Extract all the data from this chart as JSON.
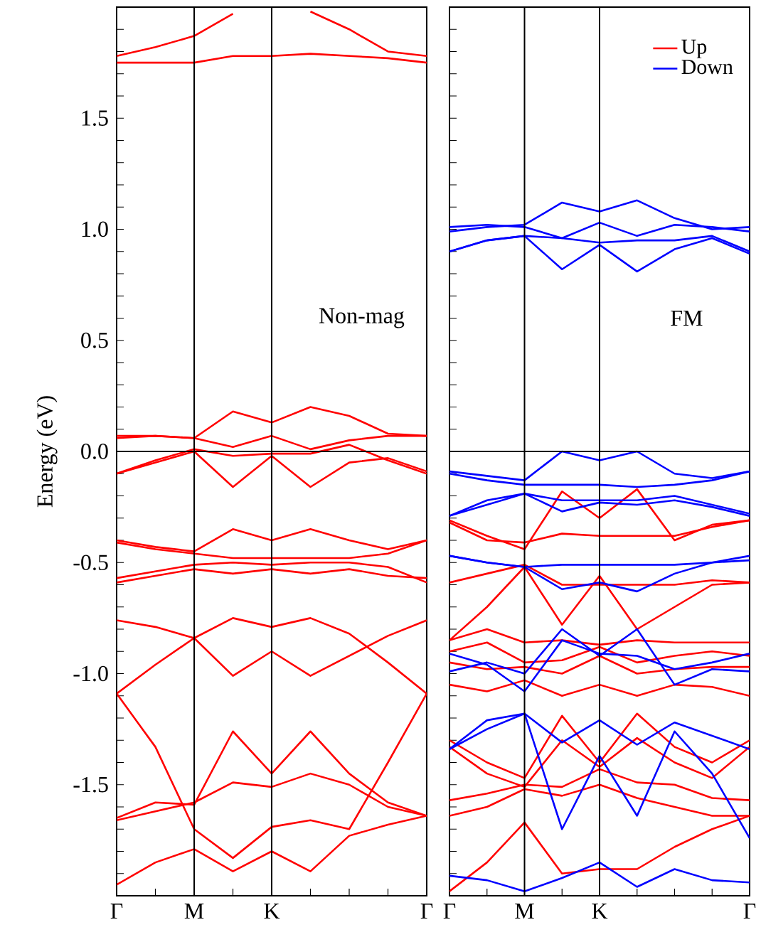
{
  "chart_data": [
    {
      "type": "line",
      "ylabel": "Energy (eV)",
      "annotations": [
        "Non-mag"
      ],
      "legend": false,
      "categories": [
        "Γ",
        null,
        "M",
        null,
        "K",
        null,
        null,
        null,
        "Γ"
      ],
      "ylim": [
        -2,
        2
      ],
      "yticks": [
        {
          "value": -1.9,
          "label": null
        },
        {
          "value": -1.8,
          "label": null
        },
        {
          "value": -1.7,
          "label": null
        },
        {
          "value": -1.6,
          "label": null
        },
        {
          "value": -1.5,
          "label": "-1.5"
        },
        {
          "value": -1.4,
          "label": null
        },
        {
          "value": -1.3,
          "label": null
        },
        {
          "value": -1.2,
          "label": null
        },
        {
          "value": -1.1,
          "label": null
        },
        {
          "value": -1.0,
          "label": "-1.0"
        },
        {
          "value": -0.9,
          "label": null
        },
        {
          "value": -0.8,
          "label": null
        },
        {
          "value": -0.7,
          "label": null
        },
        {
          "value": -0.6,
          "label": null
        },
        {
          "value": -0.5,
          "label": "-0.5"
        },
        {
          "value": -0.4,
          "label": null
        },
        {
          "value": -0.3,
          "label": null
        },
        {
          "value": -0.2,
          "label": null
        },
        {
          "value": -0.1,
          "label": null
        },
        {
          "value": 0,
          "label": "0.0"
        },
        {
          "value": 0.1,
          "label": null
        },
        {
          "value": 0.2,
          "label": null
        },
        {
          "value": 0.3,
          "label": null
        },
        {
          "value": 0.4,
          "label": null
        },
        {
          "value": 0.5,
          "label": "0.5"
        },
        {
          "value": 0.6,
          "label": null
        },
        {
          "value": 0.7,
          "label": null
        },
        {
          "value": 0.8,
          "label": null
        },
        {
          "value": 0.9,
          "label": null
        },
        {
          "value": 1.0,
          "label": "1.0"
        },
        {
          "value": 1.1,
          "label": null
        },
        {
          "value": 1.2,
          "label": null
        },
        {
          "value": 1.3,
          "label": null
        },
        {
          "value": 1.4,
          "label": null
        },
        {
          "value": 1.5,
          "label": "1.5"
        },
        {
          "value": 1.6,
          "label": null
        },
        {
          "value": 1.7,
          "label": null
        },
        {
          "value": 1.8,
          "label": null
        },
        {
          "value": 1.9,
          "label": null
        }
      ],
      "ref_lines": [
        {
          "axis": "x",
          "value": "M",
          "color": "#000000"
        },
        {
          "axis": "x",
          "value": "K",
          "color": "#000000"
        },
        {
          "axis": "y",
          "value": 0,
          "color": "#000000"
        }
      ],
      "series": [
        {
          "color": "#ff0000",
          "values": [
            1.75,
            1.75,
            1.75,
            1.78,
            1.78,
            1.79,
            1.78,
            1.77,
            1.75
          ]
        },
        {
          "color": "#ff0000",
          "values": [
            1.78,
            1.82,
            1.87,
            1.97,
            null,
            1.98,
            1.9,
            1.8,
            1.78
          ]
        },
        {
          "color": "#ff0000",
          "values": [
            0.07,
            0.07,
            0.06,
            0.18,
            0.13,
            0.2,
            0.16,
            0.08,
            0.07
          ]
        },
        {
          "color": "#ff0000",
          "values": [
            0.06,
            0.07,
            0.06,
            0.02,
            0.07,
            0.01,
            0.05,
            0.07,
            0.07
          ]
        },
        {
          "color": "#ff0000",
          "values": [
            -0.1,
            -0.04,
            0.01,
            -0.02,
            -0.01,
            -0.01,
            0.03,
            -0.04,
            -0.1
          ]
        },
        {
          "color": "#ff0000",
          "values": [
            -0.1,
            -0.05,
            0.0,
            -0.16,
            -0.02,
            -0.16,
            -0.05,
            -0.03,
            -0.09
          ]
        },
        {
          "color": "#ff0000",
          "values": [
            -0.4,
            -0.43,
            -0.45,
            -0.35,
            -0.4,
            -0.35,
            -0.4,
            -0.44,
            -0.4
          ]
        },
        {
          "color": "#ff0000",
          "values": [
            -0.41,
            -0.44,
            -0.46,
            -0.48,
            -0.48,
            -0.48,
            -0.48,
            -0.46,
            -0.4
          ]
        },
        {
          "color": "#ff0000",
          "values": [
            -0.57,
            -0.54,
            -0.51,
            -0.5,
            -0.51,
            -0.5,
            -0.5,
            -0.52,
            -0.59
          ]
        },
        {
          "color": "#ff0000",
          "values": [
            -0.59,
            -0.56,
            -0.53,
            -0.55,
            -0.53,
            -0.55,
            -0.53,
            -0.56,
            -0.57
          ]
        },
        {
          "color": "#ff0000",
          "values": [
            -0.76,
            -0.79,
            -0.84,
            -0.75,
            -0.79,
            -0.75,
            -0.82,
            -0.95,
            -1.09
          ]
        },
        {
          "color": "#ff0000",
          "values": [
            -1.09,
            -0.96,
            -0.84,
            -1.01,
            -0.9,
            -1.01,
            -0.92,
            -0.83,
            -0.76
          ]
        },
        {
          "color": "#ff0000",
          "values": [
            -1.09,
            -1.33,
            -1.7,
            -1.83,
            -1.69,
            -1.66,
            -1.7,
            -1.4,
            -1.09
          ]
        },
        {
          "color": "#ff0000",
          "values": [
            -1.65,
            -1.58,
            -1.59,
            -1.26,
            -1.45,
            -1.26,
            -1.45,
            -1.58,
            -1.64
          ]
        },
        {
          "color": "#ff0000",
          "values": [
            -1.66,
            -1.62,
            -1.58,
            -1.49,
            -1.51,
            -1.45,
            -1.5,
            -1.6,
            -1.64
          ]
        },
        {
          "color": "#ff0000",
          "values": [
            -1.95,
            -1.85,
            -1.79,
            -1.89,
            -1.8,
            -1.89,
            -1.73,
            -1.68,
            -1.64
          ]
        }
      ]
    },
    {
      "type": "line",
      "annotations": [
        "FM"
      ],
      "legend": "top right",
      "tick_labels": "x",
      "categories": [
        "Γ",
        null,
        "M",
        null,
        "K",
        null,
        null,
        null,
        "Γ"
      ],
      "ylim": [
        -2,
        2
      ],
      "yticks": [
        {
          "value": -1.9,
          "label": null
        },
        {
          "value": -1.8,
          "label": null
        },
        {
          "value": -1.7,
          "label": null
        },
        {
          "value": -1.6,
          "label": null
        },
        {
          "value": -1.5,
          "label": null
        },
        {
          "value": -1.4,
          "label": null
        },
        {
          "value": -1.3,
          "label": null
        },
        {
          "value": -1.2,
          "label": null
        },
        {
          "value": -1.1,
          "label": null
        },
        {
          "value": -1.0,
          "label": null
        },
        {
          "value": -0.9,
          "label": null
        },
        {
          "value": -0.8,
          "label": null
        },
        {
          "value": -0.7,
          "label": null
        },
        {
          "value": -0.6,
          "label": null
        },
        {
          "value": -0.5,
          "label": null
        },
        {
          "value": -0.4,
          "label": null
        },
        {
          "value": -0.3,
          "label": null
        },
        {
          "value": -0.2,
          "label": null
        },
        {
          "value": -0.1,
          "label": null
        },
        {
          "value": 0,
          "label": null
        },
        {
          "value": 0.1,
          "label": null
        },
        {
          "value": 0.2,
          "label": null
        },
        {
          "value": 0.3,
          "label": null
        },
        {
          "value": 0.4,
          "label": null
        },
        {
          "value": 0.5,
          "label": null
        },
        {
          "value": 0.6,
          "label": null
        },
        {
          "value": 0.7,
          "label": null
        },
        {
          "value": 0.8,
          "label": null
        },
        {
          "value": 0.9,
          "label": null
        },
        {
          "value": 1.0,
          "label": null
        },
        {
          "value": 1.1,
          "label": null
        },
        {
          "value": 1.2,
          "label": null
        },
        {
          "value": 1.3,
          "label": null
        },
        {
          "value": 1.4,
          "label": null
        },
        {
          "value": 1.5,
          "label": null
        },
        {
          "value": 1.6,
          "label": null
        },
        {
          "value": 1.7,
          "label": null
        },
        {
          "value": 1.8,
          "label": null
        },
        {
          "value": 1.9,
          "label": null
        }
      ],
      "ref_lines": [
        {
          "axis": "x",
          "value": "M",
          "color": "#000000"
        },
        {
          "axis": "x",
          "value": "K",
          "color": "#000000"
        },
        {
          "axis": "y",
          "value": 0,
          "color": "#000000"
        }
      ],
      "series": [
        {
          "name": "Up",
          "color": "#ff0000",
          "values": [
            -0.31,
            -0.38,
            -0.44,
            -0.18,
            -0.3,
            -0.17,
            -0.4,
            -0.33,
            -0.31
          ]
        },
        {
          "color": "#ff0000",
          "values": [
            -0.32,
            -0.4,
            -0.41,
            -0.37,
            -0.38,
            -0.38,
            -0.38,
            -0.34,
            -0.31
          ]
        },
        {
          "color": "#ff0000",
          "values": [
            -0.59,
            -0.55,
            -0.51,
            -0.6,
            -0.6,
            -0.6,
            -0.6,
            -0.58,
            -0.59
          ]
        },
        {
          "color": "#ff0000",
          "values": [
            -0.85,
            -0.7,
            -0.52,
            -0.78,
            -0.56,
            -0.8,
            -0.7,
            -0.6,
            -0.59
          ]
        },
        {
          "color": "#ff0000",
          "values": [
            -0.85,
            -0.8,
            -0.86,
            -0.85,
            -0.87,
            -0.85,
            -0.86,
            -0.86,
            -0.86
          ]
        },
        {
          "color": "#ff0000",
          "values": [
            -0.9,
            -0.86,
            -0.95,
            -0.94,
            -0.88,
            -0.95,
            -0.92,
            -0.9,
            -0.92
          ]
        },
        {
          "color": "#ff0000",
          "values": [
            -0.95,
            -0.98,
            -0.97,
            -1.0,
            -0.92,
            -1.0,
            -0.98,
            -0.97,
            -0.97
          ]
        },
        {
          "color": "#ff0000",
          "values": [
            -1.05,
            -1.08,
            -1.03,
            -1.1,
            -1.05,
            -1.1,
            -1.05,
            -1.06,
            -1.1
          ]
        },
        {
          "color": "#ff0000",
          "values": [
            -1.3,
            -1.4,
            -1.47,
            -1.19,
            -1.4,
            -1.18,
            -1.33,
            -1.4,
            -1.3
          ]
        },
        {
          "color": "#ff0000",
          "values": [
            -1.33,
            -1.45,
            -1.51,
            -1.3,
            -1.42,
            -1.29,
            -1.4,
            -1.47,
            -1.33
          ]
        },
        {
          "color": "#ff0000",
          "values": [
            -1.57,
            -1.54,
            -1.5,
            -1.51,
            -1.43,
            -1.49,
            -1.5,
            -1.56,
            -1.57
          ]
        },
        {
          "color": "#ff0000",
          "values": [
            -1.64,
            -1.6,
            -1.52,
            -1.55,
            -1.5,
            -1.56,
            -1.6,
            -1.64,
            -1.64
          ]
        },
        {
          "color": "#ff0000",
          "values": [
            -1.98,
            -1.85,
            -1.67,
            -1.9,
            -1.88,
            -1.88,
            -1.78,
            -1.7,
            -1.64
          ]
        },
        {
          "name": "Down",
          "color": "#0000ff",
          "values": [
            0.99,
            1.01,
            1.02,
            1.12,
            1.08,
            1.13,
            1.05,
            1.0,
            1.01
          ]
        },
        {
          "color": "#0000ff",
          "values": [
            1.01,
            1.02,
            1.01,
            0.96,
            1.03,
            0.97,
            1.02,
            1.01,
            0.99
          ]
        },
        {
          "color": "#0000ff",
          "values": [
            0.9,
            0.95,
            0.97,
            0.96,
            0.94,
            0.95,
            0.95,
            0.97,
            0.9
          ]
        },
        {
          "color": "#0000ff",
          "values": [
            0.9,
            0.95,
            0.97,
            0.82,
            0.93,
            0.81,
            0.91,
            0.96,
            0.89
          ]
        },
        {
          "color": "#0000ff",
          "values": [
            -0.09,
            -0.11,
            -0.13,
            0.0,
            -0.04,
            0.0,
            -0.1,
            -0.12,
            -0.09
          ]
        },
        {
          "color": "#0000ff",
          "values": [
            -0.1,
            -0.13,
            -0.15,
            -0.15,
            -0.15,
            -0.16,
            -0.15,
            -0.13,
            -0.09
          ]
        },
        {
          "color": "#0000ff",
          "values": [
            -0.29,
            -0.22,
            -0.19,
            -0.27,
            -0.23,
            -0.24,
            -0.22,
            -0.25,
            -0.29
          ]
        },
        {
          "color": "#0000ff",
          "values": [
            -0.29,
            -0.24,
            -0.19,
            -0.22,
            -0.22,
            -0.22,
            -0.2,
            -0.24,
            -0.28
          ]
        },
        {
          "color": "#0000ff",
          "values": [
            -0.47,
            -0.5,
            -0.52,
            -0.62,
            -0.59,
            -0.63,
            -0.55,
            -0.5,
            -0.47
          ]
        },
        {
          "color": "#0000ff",
          "values": [
            -0.47,
            -0.5,
            -0.52,
            -0.51,
            -0.51,
            -0.51,
            -0.51,
            -0.5,
            -0.49
          ]
        },
        {
          "color": "#0000ff",
          "values": [
            -0.99,
            -0.95,
            -1.0,
            -0.8,
            -0.92,
            -0.8,
            -1.05,
            -0.98,
            -0.99
          ]
        },
        {
          "color": "#0000ff",
          "values": [
            -0.91,
            -0.96,
            -1.08,
            -0.85,
            -0.91,
            -0.92,
            -0.98,
            -0.95,
            -0.91
          ]
        },
        {
          "color": "#0000ff",
          "values": [
            -1.34,
            -1.25,
            -1.18,
            -1.31,
            -1.21,
            -1.32,
            -1.22,
            -1.28,
            -1.34
          ]
        },
        {
          "color": "#0000ff",
          "values": [
            -1.34,
            -1.21,
            -1.18,
            -1.7,
            -1.37,
            -1.64,
            -1.26,
            -1.45,
            -1.74
          ]
        },
        {
          "color": "#0000ff",
          "values": [
            -1.91,
            -1.93,
            -1.98,
            -1.92,
            -1.85,
            -1.96,
            -1.88,
            -1.93,
            -1.94
          ]
        }
      ]
    }
  ]
}
